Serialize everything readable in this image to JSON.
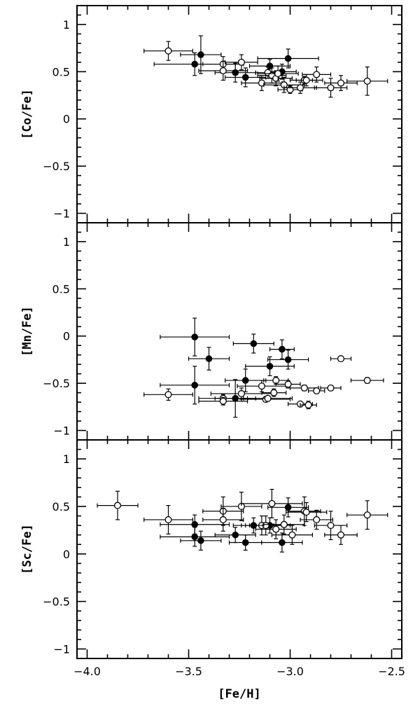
{
  "chart_data": [
    {
      "type": "scatter",
      "ylabel": "[Co/Fe]",
      "xlabel": "",
      "xlim": [
        -4.05,
        -2.45
      ],
      "ylim": [
        -1.1,
        1.2
      ],
      "yticks": [
        -1,
        -0.5,
        0,
        0.5,
        1
      ],
      "ytick_labels": [
        "−1",
        "−0.5",
        "0",
        "0.5",
        "1"
      ],
      "series": [
        {
          "marker": "filled",
          "points": [
            {
              "x": -3.47,
              "y": 0.58,
              "xerr": 0.2,
              "yerr": 0.12
            },
            {
              "x": -3.44,
              "y": 0.68,
              "xerr": 0.1,
              "yerr": 0.2
            },
            {
              "x": -3.27,
              "y": 0.49,
              "xerr": 0.1,
              "yerr": 0.1
            },
            {
              "x": -3.22,
              "y": 0.44,
              "xerr": 0.1,
              "yerr": 0.1
            },
            {
              "x": -3.1,
              "y": 0.56,
              "xerr": 0.1,
              "yerr": 0.07
            },
            {
              "x": -3.04,
              "y": 0.5,
              "xerr": 0.07,
              "yerr": 0.08
            },
            {
              "x": -3.01,
              "y": 0.64,
              "xerr": 0.15,
              "yerr": 0.1
            }
          ]
        },
        {
          "marker": "open",
          "points": [
            {
              "x": -3.6,
              "y": 0.72,
              "xerr": 0.12,
              "yerr": 0.1
            },
            {
              "x": -3.33,
              "y": 0.58,
              "xerr": 0.1,
              "yerr": 0.08
            },
            {
              "x": -3.33,
              "y": 0.51,
              "xerr": 0.12,
              "yerr": 0.1
            },
            {
              "x": -3.24,
              "y": 0.6,
              "xerr": 0.08,
              "yerr": 0.08
            },
            {
              "x": -3.14,
              "y": 0.38,
              "xerr": 0.1,
              "yerr": 0.08
            },
            {
              "x": -3.11,
              "y": 0.49,
              "xerr": 0.06,
              "yerr": 0.06
            },
            {
              "x": -3.09,
              "y": 0.46,
              "xerr": 0.07,
              "yerr": 0.08
            },
            {
              "x": -3.07,
              "y": 0.43,
              "xerr": 0.08,
              "yerr": 0.08
            },
            {
              "x": -3.06,
              "y": 0.48,
              "xerr": 0.1,
              "yerr": 0.08
            },
            {
              "x": -3.03,
              "y": 0.36,
              "xerr": 0.1,
              "yerr": 0.08
            },
            {
              "x": -3.0,
              "y": 0.31,
              "xerr": 0.06,
              "yerr": 0.04
            },
            {
              "x": -2.95,
              "y": 0.33,
              "xerr": 0.08,
              "yerr": 0.06
            },
            {
              "x": -2.93,
              "y": 0.41,
              "xerr": 0.04,
              "yerr": 0.04
            },
            {
              "x": -2.92,
              "y": 0.41,
              "xerr": 0.08,
              "yerr": 0.06
            },
            {
              "x": -2.87,
              "y": 0.47,
              "xerr": 0.07,
              "yerr": 0.08
            },
            {
              "x": -2.8,
              "y": 0.33,
              "xerr": 0.08,
              "yerr": 0.1
            },
            {
              "x": -2.75,
              "y": 0.38,
              "xerr": 0.08,
              "yerr": 0.08
            },
            {
              "x": -2.62,
              "y": 0.4,
              "xerr": 0.1,
              "yerr": 0.15
            }
          ]
        }
      ]
    },
    {
      "type": "scatter",
      "ylabel": "[Mn/Fe]",
      "xlabel": "",
      "xlim": [
        -4.05,
        -2.45
      ],
      "ylim": [
        -1.1,
        1.2
      ],
      "yticks": [
        -1,
        -0.5,
        0,
        0.5,
        1
      ],
      "ytick_labels": [
        "−1",
        "−0.5",
        "0",
        "0.5",
        "1"
      ],
      "series": [
        {
          "marker": "filled",
          "points": [
            {
              "x": -3.47,
              "y": -0.01,
              "xerr": 0.17,
              "yerr": 0.2
            },
            {
              "x": -3.47,
              "y": -0.52,
              "xerr": 0.17,
              "yerr": 0.2
            },
            {
              "x": -3.4,
              "y": -0.24,
              "xerr": 0.1,
              "yerr": 0.12
            },
            {
              "x": -3.27,
              "y": -0.66,
              "xerr": 0.1,
              "yerr": 0.2
            },
            {
              "x": -3.22,
              "y": -0.47,
              "xerr": 0.1,
              "yerr": 0.12
            },
            {
              "x": -3.18,
              "y": -0.08,
              "xerr": 0.1,
              "yerr": 0.1
            },
            {
              "x": -3.1,
              "y": -0.32,
              "xerr": 0.12,
              "yerr": 0.1
            },
            {
              "x": -3.04,
              "y": -0.14,
              "xerr": 0.06,
              "yerr": 0.1
            },
            {
              "x": -3.01,
              "y": -0.25,
              "xerr": 0.1,
              "yerr": 0.1
            }
          ]
        },
        {
          "marker": "open",
          "points": [
            {
              "x": -3.6,
              "y": -0.62,
              "xerr": 0.12,
              "yerr": 0.06
            },
            {
              "x": -3.33,
              "y": -0.66,
              "xerr": 0.12,
              "yerr": 0.04
            },
            {
              "x": -3.33,
              "y": -0.69,
              "xerr": 0.12,
              "yerr": 0.04
            },
            {
              "x": -3.24,
              "y": -0.61,
              "xerr": 0.15,
              "yerr": 0.06
            },
            {
              "x": -3.14,
              "y": -0.53,
              "xerr": 0.12,
              "yerr": 0.06
            },
            {
              "x": -3.12,
              "y": -0.67,
              "xerr": 0.12,
              "yerr": 0.02
            },
            {
              "x": -3.11,
              "y": -0.66,
              "xerr": 0.12,
              "yerr": 0.02
            },
            {
              "x": -3.08,
              "y": -0.6,
              "xerr": 0.06,
              "yerr": 0.04
            },
            {
              "x": -3.07,
              "y": -0.47,
              "xerr": 0.06,
              "yerr": 0.04
            },
            {
              "x": -3.01,
              "y": -0.51,
              "xerr": 0.06,
              "yerr": 0.04
            },
            {
              "x": -2.95,
              "y": -0.72,
              "xerr": 0.06,
              "yerr": 0.02
            },
            {
              "x": -2.93,
              "y": -0.55,
              "xerr": 0.07,
              "yerr": 0.03
            },
            {
              "x": -2.91,
              "y": -0.73,
              "xerr": 0.04,
              "yerr": 0.04
            },
            {
              "x": -2.87,
              "y": -0.58,
              "xerr": 0.04,
              "yerr": 0.03
            },
            {
              "x": -2.8,
              "y": -0.55,
              "xerr": 0.05,
              "yerr": 0.02
            },
            {
              "x": -2.75,
              "y": -0.24,
              "xerr": 0.05,
              "yerr": 0.02
            },
            {
              "x": -2.62,
              "y": -0.47,
              "xerr": 0.08,
              "yerr": 0.03
            }
          ]
        }
      ]
    },
    {
      "type": "scatter",
      "ylabel": "[Sc/Fe]",
      "xlabel": "[Fe/H]",
      "xlim": [
        -4.05,
        -2.45
      ],
      "ylim": [
        -1.1,
        1.2
      ],
      "yticks": [
        -1,
        -0.5,
        0,
        0.5,
        1
      ],
      "ytick_labels": [
        "−1",
        "−0.5",
        "0",
        "0.5",
        "1"
      ],
      "xticks": [
        -4.0,
        -3.5,
        -3.0,
        -2.5
      ],
      "xtick_labels": [
        "−4.0",
        "−3.5",
        "−3.0",
        "−2.5"
      ],
      "series": [
        {
          "marker": "filled",
          "points": [
            {
              "x": -3.47,
              "y": 0.31,
              "xerr": 0.17,
              "yerr": 0.1
            },
            {
              "x": -3.47,
              "y": 0.18,
              "xerr": 0.17,
              "yerr": 0.1
            },
            {
              "x": -3.44,
              "y": 0.14,
              "xerr": 0.1,
              "yerr": 0.1
            },
            {
              "x": -3.27,
              "y": 0.2,
              "xerr": 0.1,
              "yerr": 0.08
            },
            {
              "x": -3.22,
              "y": 0.12,
              "xerr": 0.08,
              "yerr": 0.08
            },
            {
              "x": -3.18,
              "y": 0.3,
              "xerr": 0.1,
              "yerr": 0.08
            },
            {
              "x": -3.1,
              "y": 0.3,
              "xerr": 0.1,
              "yerr": 0.08
            },
            {
              "x": -3.04,
              "y": 0.12,
              "xerr": 0.1,
              "yerr": 0.1
            },
            {
              "x": -3.01,
              "y": 0.49,
              "xerr": 0.1,
              "yerr": 0.1
            }
          ]
        },
        {
          "marker": "open",
          "points": [
            {
              "x": -3.85,
              "y": 0.51,
              "xerr": 0.1,
              "yerr": 0.15
            },
            {
              "x": -3.6,
              "y": 0.36,
              "xerr": 0.12,
              "yerr": 0.15
            },
            {
              "x": -3.33,
              "y": 0.45,
              "xerr": 0.1,
              "yerr": 0.15
            },
            {
              "x": -3.33,
              "y": 0.36,
              "xerr": 0.1,
              "yerr": 0.12
            },
            {
              "x": -3.24,
              "y": 0.5,
              "xerr": 0.1,
              "yerr": 0.15
            },
            {
              "x": -3.14,
              "y": 0.3,
              "xerr": 0.1,
              "yerr": 0.1
            },
            {
              "x": -3.12,
              "y": 0.3,
              "xerr": 0.1,
              "yerr": 0.1
            },
            {
              "x": -3.09,
              "y": 0.53,
              "xerr": 0.15,
              "yerr": 0.15
            },
            {
              "x": -3.07,
              "y": 0.26,
              "xerr": 0.1,
              "yerr": 0.1
            },
            {
              "x": -3.03,
              "y": 0.31,
              "xerr": 0.1,
              "yerr": 0.1
            },
            {
              "x": -2.99,
              "y": 0.2,
              "xerr": 0.1,
              "yerr": 0.1
            },
            {
              "x": -2.93,
              "y": 0.45,
              "xerr": 0.08,
              "yerr": 0.15
            },
            {
              "x": -2.92,
              "y": 0.44,
              "xerr": 0.1,
              "yerr": 0.1
            },
            {
              "x": -2.87,
              "y": 0.36,
              "xerr": 0.08,
              "yerr": 0.1
            },
            {
              "x": -2.8,
              "y": 0.3,
              "xerr": 0.08,
              "yerr": 0.15
            },
            {
              "x": -2.75,
              "y": 0.2,
              "xerr": 0.08,
              "yerr": 0.1
            },
            {
              "x": -2.62,
              "y": 0.41,
              "xerr": 0.1,
              "yerr": 0.15
            }
          ]
        }
      ]
    }
  ]
}
